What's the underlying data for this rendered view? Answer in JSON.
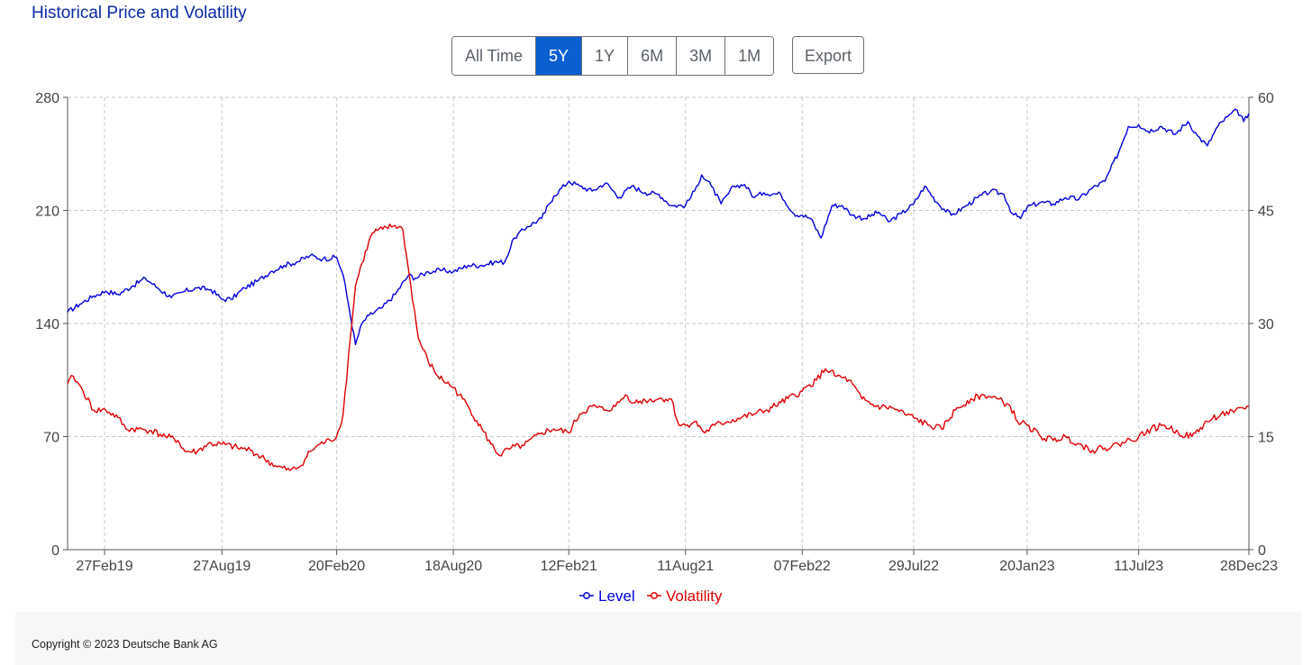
{
  "title": "Historical Price and Volatility",
  "range_buttons": [
    {
      "label": "All Time",
      "active": false
    },
    {
      "label": "5Y",
      "active": true
    },
    {
      "label": "1Y",
      "active": false
    },
    {
      "label": "6M",
      "active": false
    },
    {
      "label": "3M",
      "active": false
    },
    {
      "label": "1M",
      "active": false
    }
  ],
  "export_label": "Export",
  "footer": {
    "copyright": "Copyright © 2023 Deutsche Bank AG"
  },
  "chart_data": {
    "type": "line",
    "title": "",
    "grid": true,
    "legend_position": "bottom-center",
    "x_tick_labels": [
      "27Feb19",
      "27Aug19",
      "20Feb20",
      "18Aug20",
      "12Feb21",
      "11Aug21",
      "07Feb22",
      "29Jul22",
      "20Jan23",
      "11Jul23",
      "28Dec23"
    ],
    "x_range": [
      "2019-01-01",
      "2023-12-28"
    ],
    "y_left": {
      "ticks": [
        0,
        70,
        140,
        210,
        280
      ],
      "range": [
        0,
        280
      ]
    },
    "y_right": {
      "ticks": [
        0,
        15,
        30,
        45,
        60
      ],
      "range": [
        0,
        60
      ]
    },
    "colors": {
      "level": "#0000dd",
      "volatility": "#e00000"
    },
    "series": [
      {
        "name": "Level",
        "axis": "left",
        "points": [
          [
            "2019-01-01",
            147
          ],
          [
            "2019-01-20",
            152
          ],
          [
            "2019-02-10",
            157
          ],
          [
            "2019-03-01",
            160
          ],
          [
            "2019-03-20",
            158
          ],
          [
            "2019-04-10",
            163
          ],
          [
            "2019-05-01",
            168
          ],
          [
            "2019-05-20",
            162
          ],
          [
            "2019-06-10",
            156
          ],
          [
            "2019-07-01",
            160
          ],
          [
            "2019-07-20",
            162
          ],
          [
            "2019-08-10",
            161
          ],
          [
            "2019-08-27",
            155
          ],
          [
            "2019-09-10",
            155
          ],
          [
            "2019-10-01",
            162
          ],
          [
            "2019-10-20",
            166
          ],
          [
            "2019-11-10",
            172
          ],
          [
            "2019-12-01",
            176
          ],
          [
            "2019-12-20",
            178
          ],
          [
            "2020-01-10",
            182
          ],
          [
            "2020-01-30",
            180
          ],
          [
            "2020-02-20",
            181
          ],
          [
            "2020-03-01",
            170
          ],
          [
            "2020-03-10",
            150
          ],
          [
            "2020-03-20",
            127
          ],
          [
            "2020-03-30",
            140
          ],
          [
            "2020-04-10",
            145
          ],
          [
            "2020-05-01",
            150
          ],
          [
            "2020-05-20",
            158
          ],
          [
            "2020-06-10",
            170
          ],
          [
            "2020-06-20",
            168
          ],
          [
            "2020-07-10",
            172
          ],
          [
            "2020-08-01",
            173
          ],
          [
            "2020-08-18",
            172
          ],
          [
            "2020-09-10",
            176
          ],
          [
            "2020-10-01",
            176
          ],
          [
            "2020-10-20",
            178
          ],
          [
            "2020-11-05",
            178
          ],
          [
            "2020-11-20",
            193
          ],
          [
            "2020-12-10",
            200
          ],
          [
            "2021-01-01",
            205
          ],
          [
            "2021-01-20",
            219
          ],
          [
            "2021-02-12",
            228
          ],
          [
            "2021-03-01",
            225
          ],
          [
            "2021-03-20",
            222
          ],
          [
            "2021-04-10",
            227
          ],
          [
            "2021-05-01",
            218
          ],
          [
            "2021-05-20",
            225
          ],
          [
            "2021-06-10",
            221
          ],
          [
            "2021-07-01",
            220
          ],
          [
            "2021-07-20",
            213
          ],
          [
            "2021-08-11",
            213
          ],
          [
            "2021-08-25",
            222
          ],
          [
            "2021-09-05",
            232
          ],
          [
            "2021-09-20",
            225
          ],
          [
            "2021-10-05",
            214
          ],
          [
            "2021-10-25",
            225
          ],
          [
            "2021-11-10",
            226
          ],
          [
            "2021-11-25",
            218
          ],
          [
            "2021-12-10",
            221
          ],
          [
            "2022-01-05",
            220
          ],
          [
            "2022-01-25",
            208
          ],
          [
            "2022-02-07",
            207
          ],
          [
            "2022-02-20",
            205
          ],
          [
            "2022-03-08",
            193
          ],
          [
            "2022-03-25",
            213
          ],
          [
            "2022-04-10",
            213
          ],
          [
            "2022-04-25",
            207
          ],
          [
            "2022-05-15",
            205
          ],
          [
            "2022-06-05",
            209
          ],
          [
            "2022-06-20",
            203
          ],
          [
            "2022-07-10",
            208
          ],
          [
            "2022-07-29",
            214
          ],
          [
            "2022-08-15",
            225
          ],
          [
            "2022-09-05",
            214
          ],
          [
            "2022-09-25",
            207
          ],
          [
            "2022-10-15",
            212
          ],
          [
            "2022-11-05",
            218
          ],
          [
            "2022-11-25",
            222
          ],
          [
            "2022-12-15",
            220
          ],
          [
            "2022-12-28",
            208
          ],
          [
            "2023-01-10",
            205
          ],
          [
            "2023-01-20",
            212
          ],
          [
            "2023-02-10",
            215
          ],
          [
            "2023-03-01",
            214
          ],
          [
            "2023-03-20",
            218
          ],
          [
            "2023-04-10",
            217
          ],
          [
            "2023-05-01",
            224
          ],
          [
            "2023-05-20",
            228
          ],
          [
            "2023-06-10",
            246
          ],
          [
            "2023-06-25",
            262
          ],
          [
            "2023-07-11",
            263
          ],
          [
            "2023-07-25",
            259
          ],
          [
            "2023-08-15",
            262
          ],
          [
            "2023-09-05",
            257
          ],
          [
            "2023-09-25",
            265
          ],
          [
            "2023-10-10",
            256
          ],
          [
            "2023-10-25",
            250
          ],
          [
            "2023-11-10",
            262
          ],
          [
            "2023-11-25",
            268
          ],
          [
            "2023-12-10",
            272
          ],
          [
            "2023-12-20",
            265
          ],
          [
            "2023-12-28",
            270
          ]
        ]
      },
      {
        "name": "Volatility",
        "axis": "right",
        "points": [
          [
            "2019-01-01",
            22
          ],
          [
            "2019-01-10",
            23
          ],
          [
            "2019-01-25",
            21
          ],
          [
            "2019-02-10",
            18.5
          ],
          [
            "2019-03-01",
            18.5
          ],
          [
            "2019-03-20",
            17.5
          ],
          [
            "2019-04-01",
            16
          ],
          [
            "2019-04-20",
            16
          ],
          [
            "2019-05-10",
            15.8
          ],
          [
            "2019-06-01",
            15
          ],
          [
            "2019-06-20",
            14.5
          ],
          [
            "2019-07-01",
            13
          ],
          [
            "2019-07-20",
            13
          ],
          [
            "2019-08-05",
            14
          ],
          [
            "2019-08-27",
            14
          ],
          [
            "2019-09-20",
            13.5
          ],
          [
            "2019-10-10",
            13.2
          ],
          [
            "2019-11-01",
            12
          ],
          [
            "2019-11-20",
            11
          ],
          [
            "2019-12-10",
            10.5
          ],
          [
            "2019-12-25",
            11
          ],
          [
            "2020-01-10",
            13
          ],
          [
            "2020-01-25",
            14
          ],
          [
            "2020-02-10",
            14.5
          ],
          [
            "2020-02-20",
            15
          ],
          [
            "2020-03-01",
            18
          ],
          [
            "2020-03-12",
            28
          ],
          [
            "2020-03-20",
            35
          ],
          [
            "2020-03-30",
            38
          ],
          [
            "2020-04-15",
            42
          ],
          [
            "2020-05-01",
            42.5
          ],
          [
            "2020-05-20",
            43
          ],
          [
            "2020-06-01",
            42.5
          ],
          [
            "2020-06-10",
            37
          ],
          [
            "2020-06-25",
            28
          ],
          [
            "2020-07-10",
            25
          ],
          [
            "2020-07-25",
            23
          ],
          [
            "2020-08-18",
            21.5
          ],
          [
            "2020-09-10",
            19
          ],
          [
            "2020-10-01",
            16
          ],
          [
            "2020-10-15",
            14
          ],
          [
            "2020-10-28",
            12.5
          ],
          [
            "2020-11-15",
            13.5
          ],
          [
            "2020-12-05",
            13.8
          ],
          [
            "2021-01-01",
            15.5
          ],
          [
            "2021-01-20",
            16
          ],
          [
            "2021-02-12",
            15.5
          ],
          [
            "2021-03-01",
            18
          ],
          [
            "2021-03-20",
            19
          ],
          [
            "2021-04-10",
            18.5
          ],
          [
            "2021-04-25",
            19
          ],
          [
            "2021-05-10",
            20.5
          ],
          [
            "2021-05-25",
            19.5
          ],
          [
            "2021-06-10",
            19.8
          ],
          [
            "2021-07-01",
            20
          ],
          [
            "2021-07-20",
            20
          ],
          [
            "2021-08-01",
            16.5
          ],
          [
            "2021-08-11",
            16.5
          ],
          [
            "2021-08-25",
            17
          ],
          [
            "2021-09-10",
            15.5
          ],
          [
            "2021-09-25",
            16.5
          ],
          [
            "2021-10-15",
            17
          ],
          [
            "2021-11-05",
            17.5
          ],
          [
            "2021-11-25",
            18
          ],
          [
            "2021-12-15",
            18.5
          ],
          [
            "2022-01-05",
            19.5
          ],
          [
            "2022-02-07",
            21
          ],
          [
            "2022-03-01",
            22.5
          ],
          [
            "2022-03-15",
            24
          ],
          [
            "2022-04-01",
            23
          ],
          [
            "2022-04-20",
            22.5
          ],
          [
            "2022-05-10",
            20
          ],
          [
            "2022-06-01",
            19
          ],
          [
            "2022-06-25",
            18.8
          ],
          [
            "2022-07-15",
            18
          ],
          [
            "2022-07-29",
            17.5
          ],
          [
            "2022-08-20",
            16.5
          ],
          [
            "2022-09-10",
            16
          ],
          [
            "2022-10-01",
            18.5
          ],
          [
            "2022-10-25",
            20
          ],
          [
            "2022-11-15",
            20.5
          ],
          [
            "2022-12-05",
            20
          ],
          [
            "2022-12-25",
            19
          ],
          [
            "2023-01-05",
            17
          ],
          [
            "2023-01-20",
            16.5
          ],
          [
            "2023-02-10",
            15
          ],
          [
            "2023-03-01",
            14.5
          ],
          [
            "2023-03-20",
            15
          ],
          [
            "2023-04-10",
            14
          ],
          [
            "2023-05-01",
            13.2
          ],
          [
            "2023-05-20",
            13.5
          ],
          [
            "2023-06-10",
            14
          ],
          [
            "2023-07-11",
            15
          ],
          [
            "2023-07-30",
            16
          ],
          [
            "2023-08-20",
            16.5
          ],
          [
            "2023-09-10",
            15.5
          ],
          [
            "2023-10-01",
            15
          ],
          [
            "2023-10-25",
            17
          ],
          [
            "2023-11-15",
            18
          ],
          [
            "2023-12-05",
            18.2
          ],
          [
            "2023-12-28",
            19
          ]
        ]
      }
    ]
  }
}
